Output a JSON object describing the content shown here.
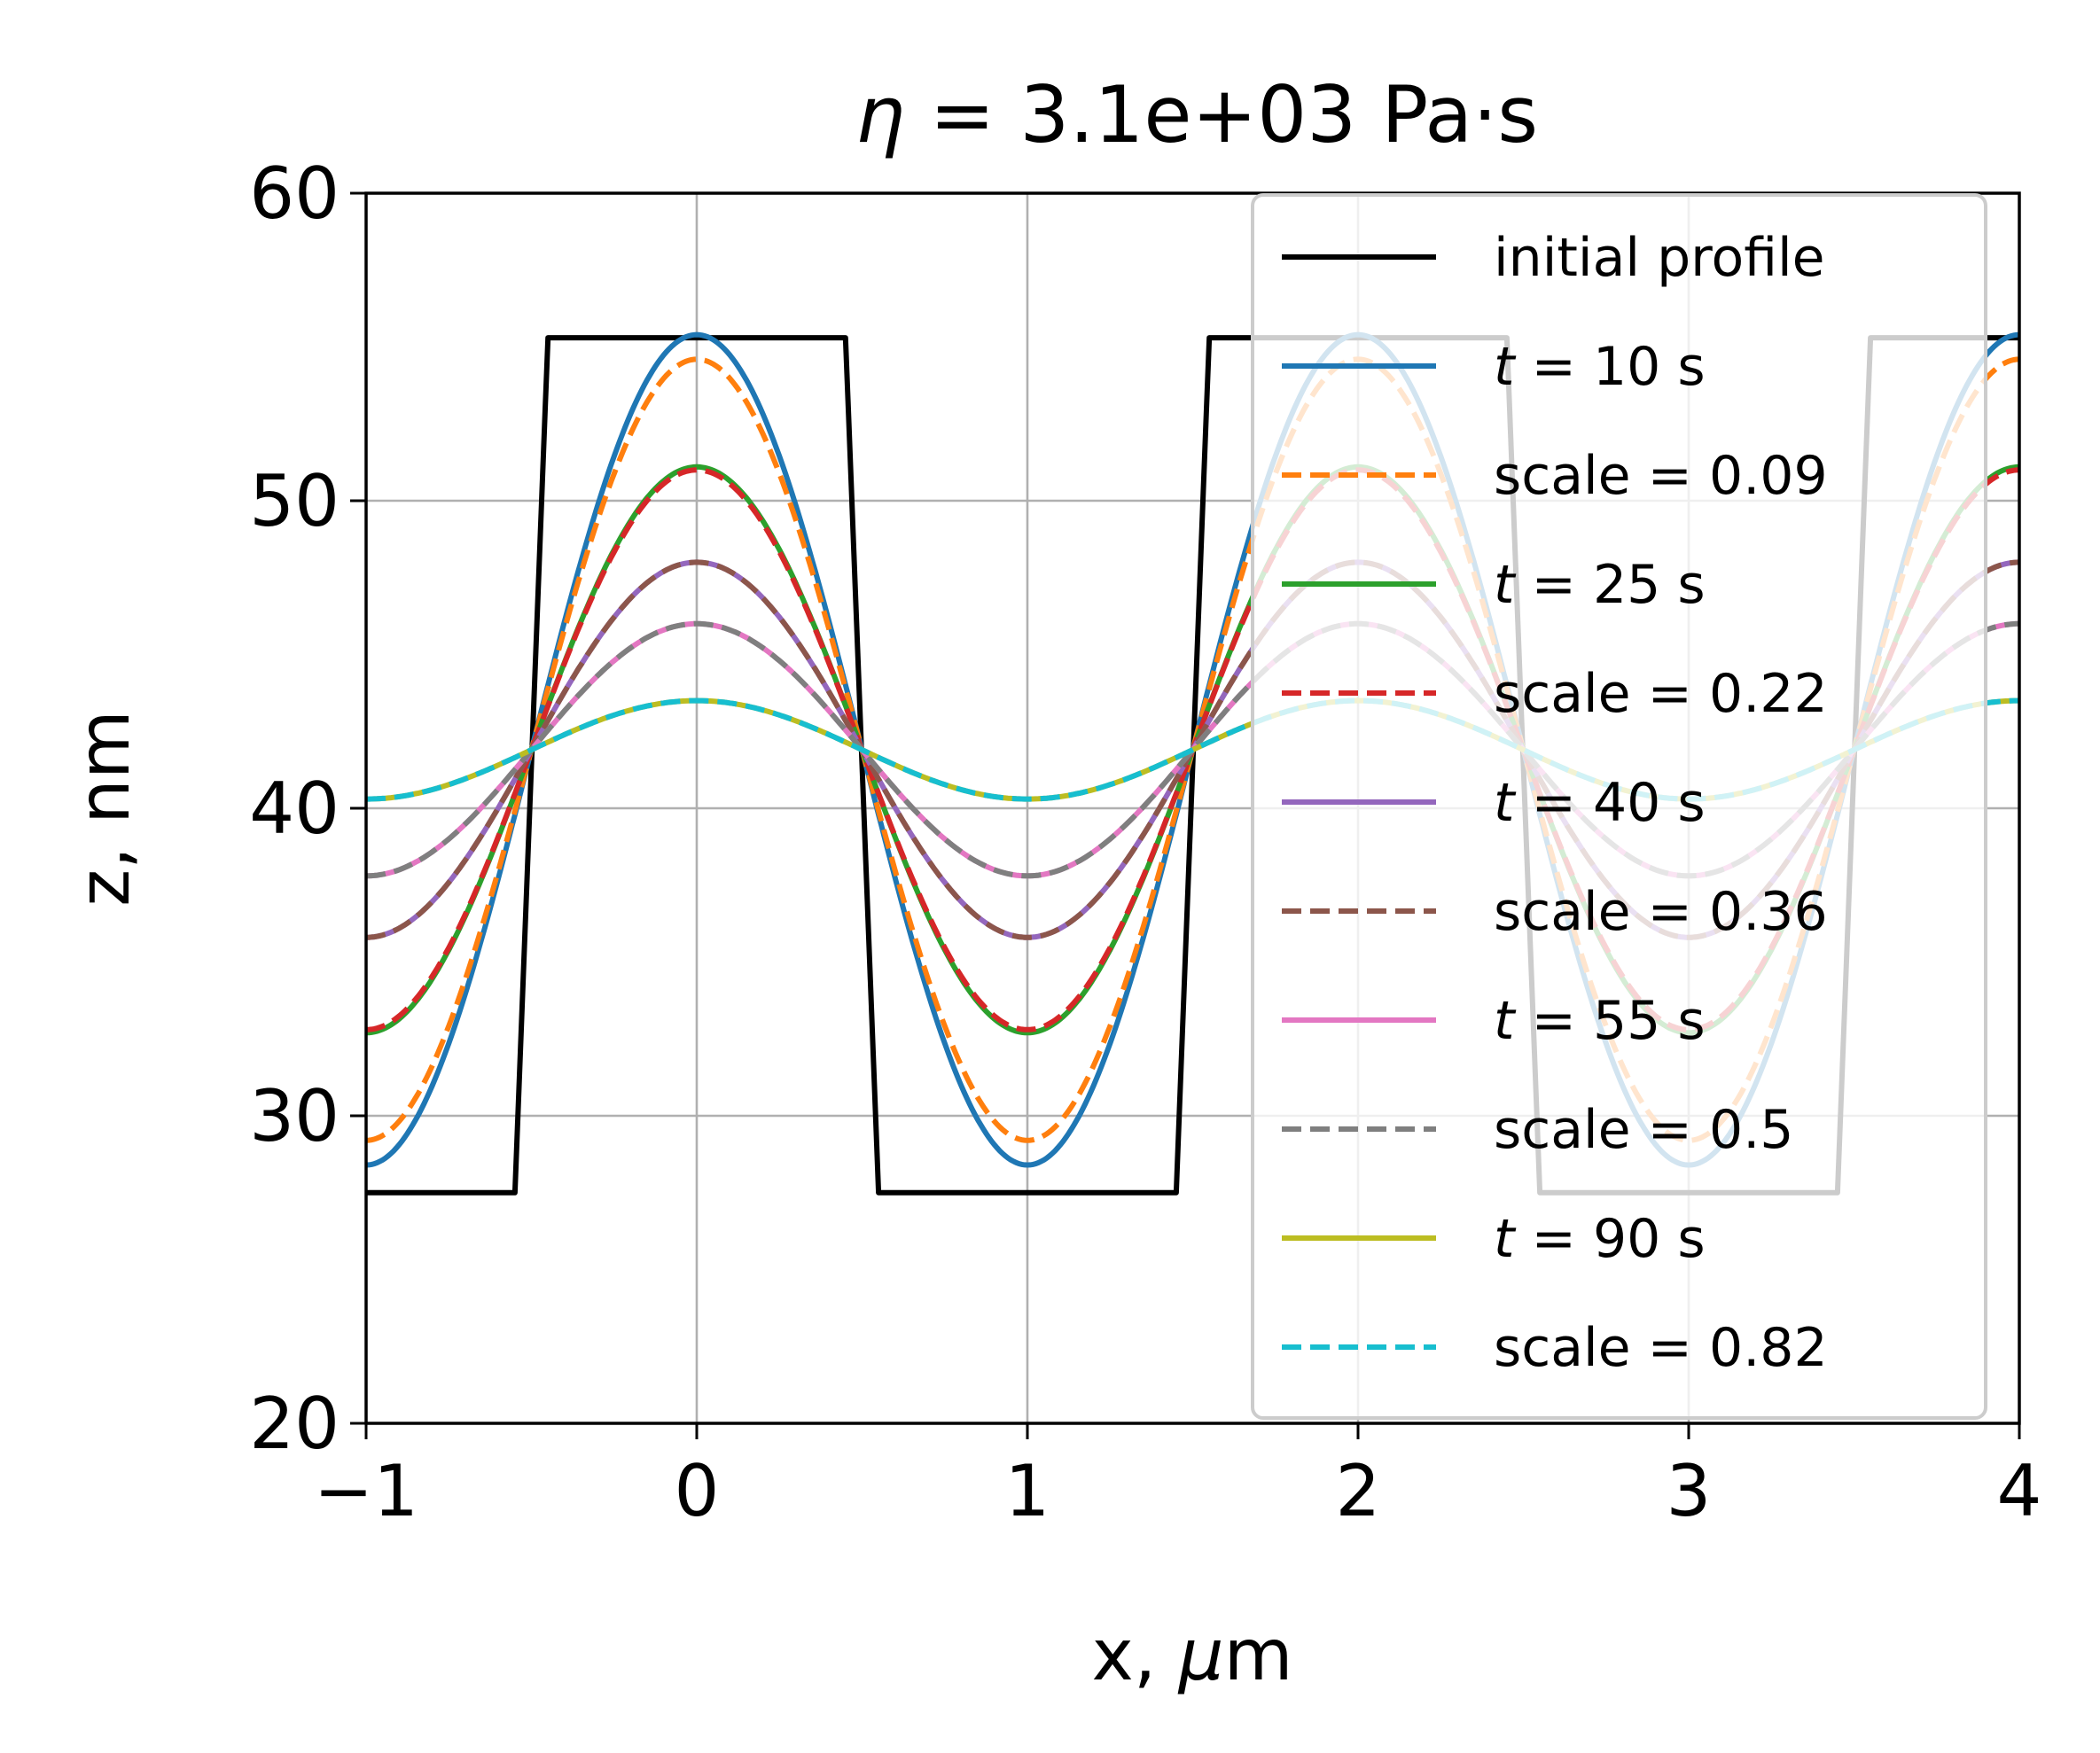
{
  "chart_data": {
    "type": "line",
    "title_prefix": "η",
    "title_rest": " = 3.1e+03 Pa·s",
    "xlabel_prefix": "x, ",
    "xlabel_mu": "μ",
    "xlabel_suffix": "m",
    "ylabel": "z, nm",
    "xlim": [
      -1,
      4
    ],
    "ylim": [
      20,
      60
    ],
    "xticks": [
      "−1",
      "0",
      "1",
      "2",
      "3",
      "4"
    ],
    "xtick_values": [
      -1,
      0,
      1,
      2,
      3,
      4
    ],
    "yticks": [
      "20",
      "30",
      "40",
      "50",
      "60"
    ],
    "ytick_values": [
      20,
      30,
      40,
      50,
      60
    ],
    "grid": true,
    "legend_position": "upper right",
    "initial_profile": {
      "name": "initial profile",
      "color": "#000000",
      "low": 27.5,
      "high": 55.3,
      "period": 2,
      "rise_center": -0.5,
      "fall_center": 0.5,
      "transition_width": 0.1
    },
    "mean_level": 41.9,
    "series": [
      {
        "label_italic": "t",
        "label_rest": " = 10 s",
        "color": "#1f77b4",
        "style": "solid",
        "peak": 55.4
      },
      {
        "label_italic": "",
        "label_rest": "scale = 0.09",
        "color": "#ff7f0e",
        "style": "dashed",
        "peak": 54.6
      },
      {
        "label_italic": "t",
        "label_rest": " = 25 s",
        "color": "#2ca02c",
        "style": "solid",
        "peak": 51.1
      },
      {
        "label_italic": "",
        "label_rest": "scale = 0.22",
        "color": "#d62728",
        "style": "dashed",
        "peak": 51.0
      },
      {
        "label_italic": "t",
        "label_rest": " = 40 s",
        "color": "#9467bd",
        "style": "solid",
        "peak": 48.0
      },
      {
        "label_italic": "",
        "label_rest": "scale = 0.36",
        "color": "#8c564b",
        "style": "dashed",
        "peak": 48.0
      },
      {
        "label_italic": "t",
        "label_rest": " = 55 s",
        "color": "#e377c2",
        "style": "solid",
        "peak": 46.0
      },
      {
        "label_italic": "",
        "label_rest": "scale = 0.5",
        "color": "#7f7f7f",
        "style": "dashed",
        "peak": 46.0
      },
      {
        "label_italic": "t",
        "label_rest": " = 90 s",
        "color": "#bcbd22",
        "style": "solid",
        "peak": 43.5
      },
      {
        "label_italic": "",
        "label_rest": "scale = 0.82",
        "color": "#17becf",
        "style": "dashed",
        "peak": 43.5
      }
    ]
  }
}
